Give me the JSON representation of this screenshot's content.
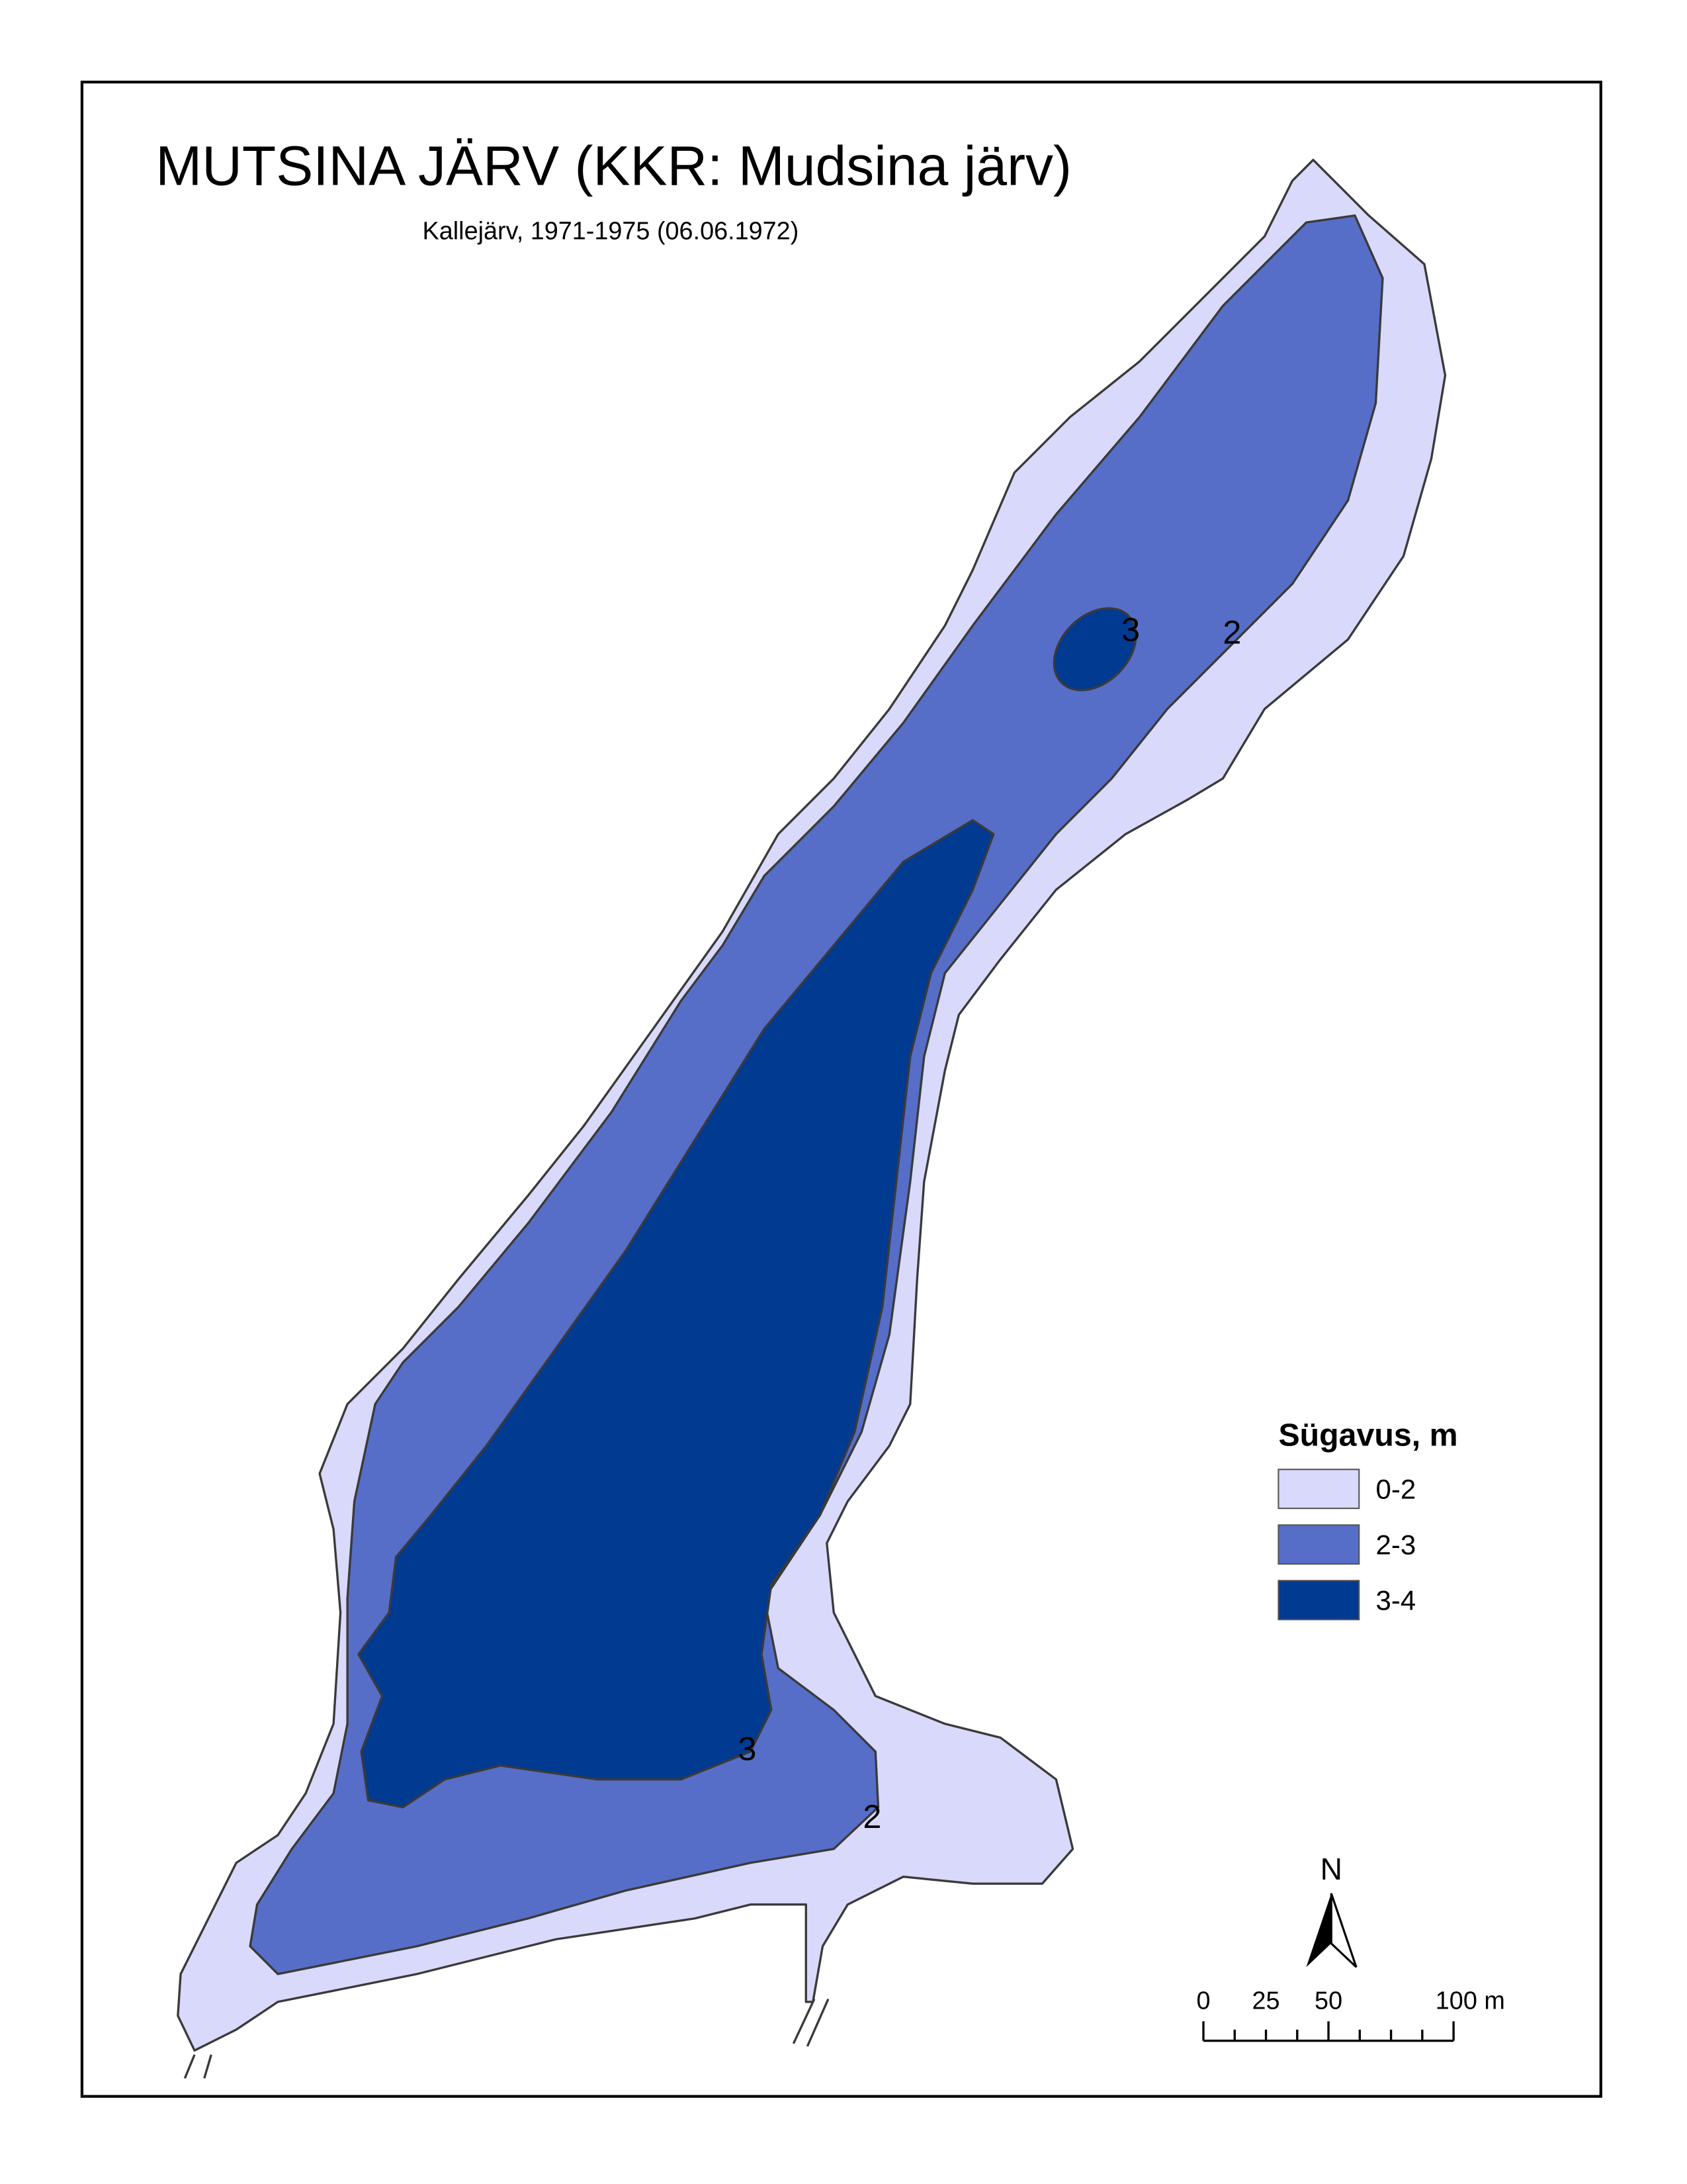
{
  "title": "MUTSINA JÄRV (KKR: Mudsina järv)",
  "subtitle": "Kallejärv, 1971-1975 (06.06.1972)",
  "contour_labels": [
    "3",
    "2",
    "3",
    "2"
  ],
  "legend": {
    "title": "Sügavus, m",
    "items": [
      {
        "label": "0-2",
        "color": "#d9d9fb"
      },
      {
        "label": "2-3",
        "color": "#566ec8"
      },
      {
        "label": "3-4",
        "color": "#003a91"
      }
    ]
  },
  "north": "N",
  "scale": {
    "labels": [
      "0",
      "25",
      "50",
      "100 m"
    ]
  }
}
